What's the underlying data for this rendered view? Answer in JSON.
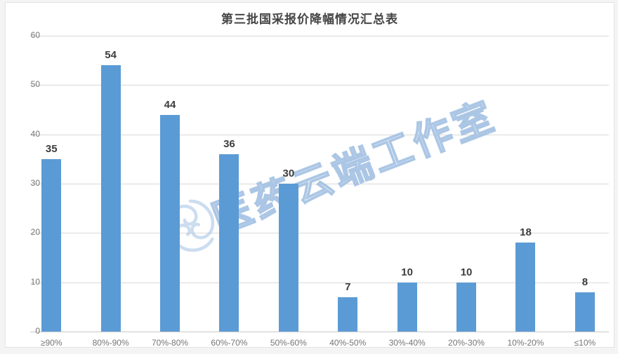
{
  "title": "第三批国采报价降幅情况汇总表",
  "watermark": {
    "text": "医药云端工作室",
    "logo_icon": "swirl-seal-icon"
  },
  "colors": {
    "bar": "#5B9BD5",
    "gridline": "#D9D9D9",
    "axis_text": "#757575",
    "value_label": "#3D3D3D",
    "title_text": "#454545",
    "watermark": "#A0BEE0"
  },
  "chart_data": {
    "type": "bar",
    "title": "第三批国采报价降幅情况汇总表",
    "categories": [
      "≥90%",
      "80%-90%",
      "70%-80%",
      "60%-70%",
      "50%-60%",
      "40%-50%",
      "30%-40%",
      "20%-30%",
      "10%-20%",
      "≤10%"
    ],
    "values": [
      35,
      54,
      44,
      36,
      30,
      7,
      10,
      10,
      18,
      8
    ],
    "xlabel": "",
    "ylabel": "",
    "ylim": [
      0,
      60
    ],
    "yticks": [
      0,
      10,
      20,
      30,
      40,
      50,
      60
    ],
    "grid": true,
    "legend": false,
    "bar_color": "#5B9BD5"
  }
}
